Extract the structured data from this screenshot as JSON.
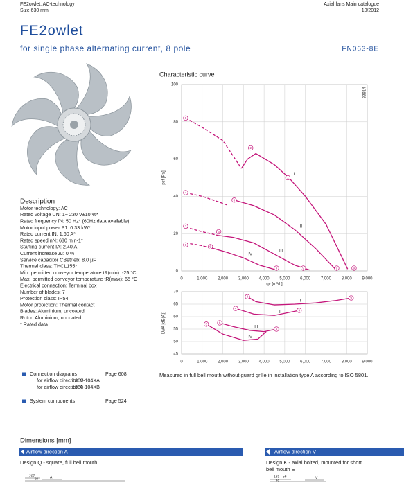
{
  "header": {
    "left": [
      "FE2owlet, AC-technology",
      "Size 630 mm"
    ],
    "right": [
      "Axial fans Main catalogue",
      "10/2012"
    ]
  },
  "title": "FE2owlet",
  "subtitle": "for single phase alternating current, 8 pole",
  "code": "FN063-8E",
  "description": {
    "heading": "Description",
    "lines": [
      "Motor technology: AC",
      "Rated voltage UN: 1~ 230 V±10 %*",
      "Rated frequency fN: 50 Hz* (60Hz data available)",
      "Motor input power P1: 0.33 kW*",
      "Rated current IN: 1.60 A*",
      "Rated speed nN: 630 min-1*",
      "Starting current IA: 2.40 A",
      "Current increase ΔI: 0 %",
      "Service capacitor CBetrieb: 8.0 µF",
      "Thermal class: THCL155*",
      "Min. permitted conveyor temperature tR(min): -25 °C",
      "Max. permitted conveyor temperature tR(max): 65 °C",
      "Electrical connection: Terminal box",
      "Number of blades: 7",
      "Protection class: IP54",
      "Motor protection: Thermal contact",
      "Blades: Aluminium, uncoated",
      "Rotor: Aluminium, uncoated",
      "* Rated data"
    ]
  },
  "chart_data": [
    {
      "type": "line",
      "title": "Characteristic curve",
      "code": "83814",
      "ylabel": "psf [Pa]",
      "xlabel": "qv [m³/h]",
      "xlim": [
        0,
        9000
      ],
      "ylim": [
        0,
        100
      ],
      "grid": true,
      "xticks": [
        0,
        {
          "value": 1000,
          "label": "1,000"
        },
        {
          "value": 2000,
          "label": "2,000"
        },
        {
          "value": 3000,
          "label": "3,000"
        },
        {
          "value": 4000,
          "label": "4,000"
        },
        {
          "value": 5000,
          "label": "5,000"
        },
        {
          "value": 6000,
          "label": "6,000"
        },
        {
          "value": 7000,
          "label": "7,000"
        },
        {
          "value": 8000,
          "label": "8,000"
        },
        {
          "value": 9000,
          "label": "9,000"
        }
      ],
      "yticks": [
        0,
        20,
        40,
        60,
        80,
        100
      ],
      "series": [
        {
          "color": "#c4157a",
          "dashed": true,
          "x": [
            200,
            1000,
            2000,
            2600,
            2900
          ],
          "values": [
            82,
            77,
            70,
            60,
            55
          ]
        },
        {
          "name": "I",
          "color": "#c4157a",
          "x": [
            2900,
            3200,
            3600,
            4500,
            5200,
            6000,
            7000,
            8050
          ],
          "values": [
            55,
            60,
            63,
            57,
            50,
            40,
            25,
            1
          ]
        },
        {
          "color": "#c4157a",
          "dashed": true,
          "x": [
            200,
            1000,
            1800,
            2300
          ],
          "values": [
            42,
            40,
            37,
            35
          ]
        },
        {
          "name": "II",
          "color": "#c4157a",
          "x": [
            2550,
            3500,
            4500,
            5500,
            6500,
            7450
          ],
          "values": [
            38,
            35,
            30,
            22,
            12,
            1
          ]
        },
        {
          "color": "#c4157a",
          "dashed": true,
          "x": [
            200,
            1000,
            1800
          ],
          "values": [
            23.5,
            21,
            19
          ]
        },
        {
          "name": "III",
          "color": "#c4157a",
          "x": [
            1800,
            2500,
            3500,
            4500,
            5500,
            6200
          ],
          "values": [
            19,
            18,
            15,
            9,
            3,
            0.5
          ]
        },
        {
          "color": "#c4157a",
          "dashed": true,
          "x": [
            200,
            800,
            1400
          ],
          "values": [
            15,
            14,
            12.5
          ]
        },
        {
          "name": "IV",
          "color": "#c4157a",
          "x": [
            1400,
            2200,
            3000,
            3800,
            4600
          ],
          "values": [
            12.5,
            10,
            7,
            3,
            0.5
          ]
        }
      ],
      "points": [
        {
          "x": 200,
          "y": 82,
          "label": "8"
        },
        {
          "x": 3350,
          "y": 66,
          "label": "2"
        },
        {
          "x": 5150,
          "y": 50,
          "label": "1"
        },
        {
          "x": 200,
          "y": 42,
          "label": "4"
        },
        {
          "x": 2550,
          "y": 38,
          "label": "3"
        },
        {
          "x": 200,
          "y": 24,
          "label": "7"
        },
        {
          "x": 1800,
          "y": 21,
          "label": "6"
        },
        {
          "x": 200,
          "y": 14,
          "label": "8"
        },
        {
          "x": 1400,
          "y": 13,
          "label": "5"
        },
        {
          "x": 4600,
          "y": 1.5,
          "label": "9"
        },
        {
          "x": 5900,
          "y": 1.5,
          "label": "9"
        },
        {
          "x": 7520,
          "y": 1.5,
          "label": "9"
        },
        {
          "x": 8360,
          "y": 1.5,
          "label": "9"
        }
      ]
    },
    {
      "type": "line",
      "ylabel": "LWA [dB(A)]",
      "xlim": [
        0,
        9000
      ],
      "ylim": [
        45,
        70
      ],
      "grid": true,
      "xticks": [
        0,
        {
          "value": 1000,
          "label": "1,000"
        },
        {
          "value": 2000,
          "label": "2,000"
        },
        {
          "value": 3000,
          "label": "3,000"
        },
        {
          "value": 4000,
          "label": "4,000"
        },
        {
          "value": 5000,
          "label": "5,000"
        },
        {
          "value": 6000,
          "label": "6,000"
        },
        {
          "value": 7000,
          "label": "7,000"
        },
        {
          "value": 8000,
          "label": "8,000"
        },
        {
          "value": 9000,
          "label": "9,000"
        }
      ],
      "yticks": [
        45,
        50,
        55,
        60,
        65,
        70
      ],
      "series": [
        {
          "name": "I",
          "color": "#c4157a",
          "x": [
            3190,
            3600,
            4500,
            5500,
            6500,
            7500,
            8220
          ],
          "values": [
            68,
            66,
            64.7,
            65,
            65.5,
            66.5,
            67.5
          ]
        },
        {
          "name": "II",
          "color": "#c4157a",
          "x": [
            2620,
            3500,
            4500,
            5700
          ],
          "values": [
            63.3,
            61,
            60.5,
            62.5
          ]
        },
        {
          "name": "III",
          "color": "#c4157a",
          "x": [
            1850,
            2500,
            3300,
            4000,
            4600
          ],
          "values": [
            57.5,
            56,
            54.5,
            54,
            55
          ]
        },
        {
          "name": "IV",
          "color": "#c4157a",
          "x": [
            1200,
            2000,
            3000,
            3700,
            4100
          ],
          "values": [
            57,
            53,
            50.5,
            51,
            54
          ]
        }
      ],
      "points": [
        {
          "x": 3190,
          "y": 68,
          "label": "8"
        },
        {
          "x": 8220,
          "y": 67.5,
          "label": "9"
        },
        {
          "x": 2620,
          "y": 63.3,
          "label": "4"
        },
        {
          "x": 5700,
          "y": 62.5,
          "label": "9"
        },
        {
          "x": 1850,
          "y": 57.5,
          "label": "6"
        },
        {
          "x": 1200,
          "y": 57,
          "label": "5"
        },
        {
          "x": 4600,
          "y": 55,
          "label": "9"
        }
      ]
    }
  ],
  "note": "Measured in full bell mouth without guard grille in installation type A according to ISO 5801.",
  "connections": {
    "rows": [
      [
        "Connection diagrams",
        "Page 608"
      ],
      [
        "for airflow direction V",
        "1360-104XA"
      ],
      [
        "for airflow direction A",
        "1360-104XB"
      ],
      [
        "System components",
        "Page 524"
      ]
    ]
  },
  "dimensions": {
    "heading": "Dimensions [mm]",
    "left": {
      "bar": "Airflow direction A",
      "design": "Design Q - square, full bell mouth",
      "labels": [
        "207",
        "20",
        "A"
      ]
    },
    "right": {
      "bar": "Airflow direction V",
      "design": [
        "Design K - axial bolted, mounted for short",
        "bell mouth E"
      ],
      "labels": [
        "131",
        "56",
        "48",
        "V"
      ]
    }
  }
}
